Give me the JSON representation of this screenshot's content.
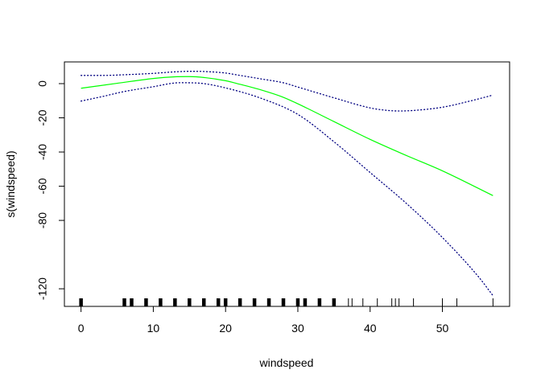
{
  "chart_data": {
    "type": "line",
    "title": "",
    "xlabel": "windspeed",
    "ylabel": "s(windspeed)",
    "xlim": [
      -2.3,
      59.3
    ],
    "ylim": [
      -130.3,
      12.7
    ],
    "x_ticks": [
      0,
      10,
      20,
      30,
      40,
      50
    ],
    "y_ticks": [
      0,
      -20,
      -40,
      -60,
      -80,
      -120
    ],
    "grid": false,
    "legend": "none",
    "colors": {
      "fit": "#00ff00",
      "band": "#000080",
      "axis": "#000000",
      "rug": "#000000"
    },
    "series": [
      {
        "role": "fit",
        "style": "solid",
        "x": [
          0,
          5,
          10,
          13,
          15,
          17,
          20,
          22,
          25,
          28,
          30,
          35,
          40,
          45,
          50,
          57
        ],
        "y": [
          -2.7,
          0.2,
          3.0,
          4.0,
          4.1,
          3.6,
          1.7,
          -0.4,
          -3.8,
          -8.0,
          -11.8,
          -22.2,
          -32.6,
          -42.0,
          -51.0,
          -65.5
        ]
      },
      {
        "role": "upper-band",
        "style": "dotted",
        "x": [
          0,
          3,
          6,
          10,
          13,
          15,
          17,
          20,
          22,
          25,
          28,
          30,
          35,
          40,
          42,
          44,
          46,
          50,
          54,
          57
        ],
        "y": [
          4.8,
          4.8,
          5.2,
          6.0,
          6.9,
          7.2,
          7.1,
          6.2,
          4.8,
          2.7,
          0.5,
          -2.0,
          -8.3,
          -14.2,
          -15.5,
          -16.0,
          -15.7,
          -13.8,
          -10.0,
          -6.7
        ]
      },
      {
        "role": "lower-band",
        "style": "dotted",
        "x": [
          0,
          3,
          6,
          10,
          13,
          15,
          17,
          20,
          25,
          30,
          35,
          40,
          45,
          50,
          55,
          57
        ],
        "y": [
          -10.2,
          -7.5,
          -4.6,
          -1.8,
          0.4,
          0.5,
          0.0,
          -2.5,
          -8.7,
          -18.0,
          -34.0,
          -52.0,
          -70.0,
          -90.0,
          -113.0,
          -124.0
        ]
      }
    ],
    "rug": {
      "thick": [
        0,
        6,
        7,
        9,
        11,
        13,
        15,
        17,
        19,
        20,
        22,
        24,
        26,
        28,
        30,
        31,
        33,
        35
      ],
      "thin": [
        37,
        37.5,
        39,
        41,
        43,
        43.5,
        44,
        46,
        50,
        52,
        57
      ]
    }
  }
}
